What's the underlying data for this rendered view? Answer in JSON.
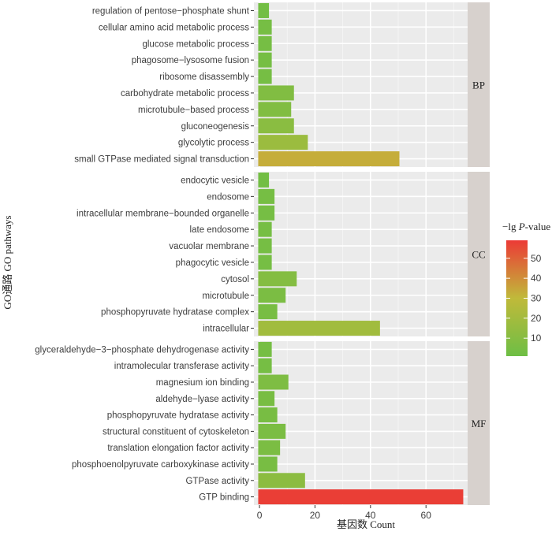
{
  "chart_data": {
    "type": "bar",
    "orientation": "horizontal",
    "xlabel": "基因数 Count",
    "ylabel": "GO通路 GO pathways",
    "xlim": [
      -2,
      75
    ],
    "xticks": [
      0,
      20,
      40,
      60
    ],
    "legend": {
      "title_prefix": "−lg ",
      "title_italic": "P",
      "title_suffix": "-value",
      "ticks": [
        10,
        20,
        30,
        40,
        50
      ],
      "range": [
        1,
        59
      ],
      "colors": {
        "low": "#6dbe45",
        "mid": "#c0ba3a",
        "high": "#ec3a36"
      },
      "placement": "right"
    },
    "panels": [
      {
        "name": "BP",
        "categories": [
          {
            "label": "regulation of pentose−phosphate shunt",
            "value": 3,
            "neg_log_p": 3
          },
          {
            "label": "cellular amino acid metabolic process",
            "value": 4,
            "neg_log_p": 4
          },
          {
            "label": "glucose metabolic process",
            "value": 4,
            "neg_log_p": 4
          },
          {
            "label": "phagosome−lysosome fusion",
            "value": 4,
            "neg_log_p": 4
          },
          {
            "label": "ribosome disassembly",
            "value": 4,
            "neg_log_p": 4
          },
          {
            "label": "carbohydrate metabolic process",
            "value": 12,
            "neg_log_p": 8
          },
          {
            "label": "microtubule−based process",
            "value": 11,
            "neg_log_p": 8
          },
          {
            "label": "gluconeogenesis",
            "value": 12,
            "neg_log_p": 11
          },
          {
            "label": "glycolytic process",
            "value": 17,
            "neg_log_p": 17
          },
          {
            "label": "small GTPase mediated signal transduction",
            "value": 50,
            "neg_log_p": 33
          }
        ]
      },
      {
        "name": "CC",
        "categories": [
          {
            "label": "endocytic vesicle",
            "value": 3,
            "neg_log_p": 3
          },
          {
            "label": "endosome",
            "value": 5,
            "neg_log_p": 4
          },
          {
            "label": "intracellular membrane−bounded organelle",
            "value": 5,
            "neg_log_p": 4
          },
          {
            "label": "late endosome",
            "value": 4,
            "neg_log_p": 4
          },
          {
            "label": "vacuolar membrane",
            "value": 4,
            "neg_log_p": 4
          },
          {
            "label": "phagocytic vesicle",
            "value": 4,
            "neg_log_p": 4
          },
          {
            "label": "cytosol",
            "value": 13,
            "neg_log_p": 9
          },
          {
            "label": "microtubule",
            "value": 9,
            "neg_log_p": 6
          },
          {
            "label": "phosphopyruvate hydratase complex",
            "value": 6,
            "neg_log_p": 5
          },
          {
            "label": "intracellular",
            "value": 43,
            "neg_log_p": 19
          }
        ]
      },
      {
        "name": "MF",
        "categories": [
          {
            "label": "glyceraldehyde−3−phosphate dehydrogenase activity",
            "value": 4,
            "neg_log_p": 4
          },
          {
            "label": "intramolecular transferase activity",
            "value": 4,
            "neg_log_p": 4
          },
          {
            "label": "magnesium ion binding",
            "value": 10,
            "neg_log_p": 7
          },
          {
            "label": "aldehyde−lyase activity",
            "value": 5,
            "neg_log_p": 5
          },
          {
            "label": "phosphopyruvate hydratase activity",
            "value": 6,
            "neg_log_p": 5
          },
          {
            "label": "structural constituent of cytoskeleton",
            "value": 9,
            "neg_log_p": 6
          },
          {
            "label": "translation elongation factor activity",
            "value": 7,
            "neg_log_p": 6
          },
          {
            "label": "phosphoenolpyruvate carboxykinase activity",
            "value": 6,
            "neg_log_p": 5
          },
          {
            "label": "GTPase activity",
            "value": 16,
            "neg_log_p": 12
          },
          {
            "label": "GTP binding",
            "value": 73,
            "neg_log_p": 58
          }
        ]
      }
    ]
  }
}
